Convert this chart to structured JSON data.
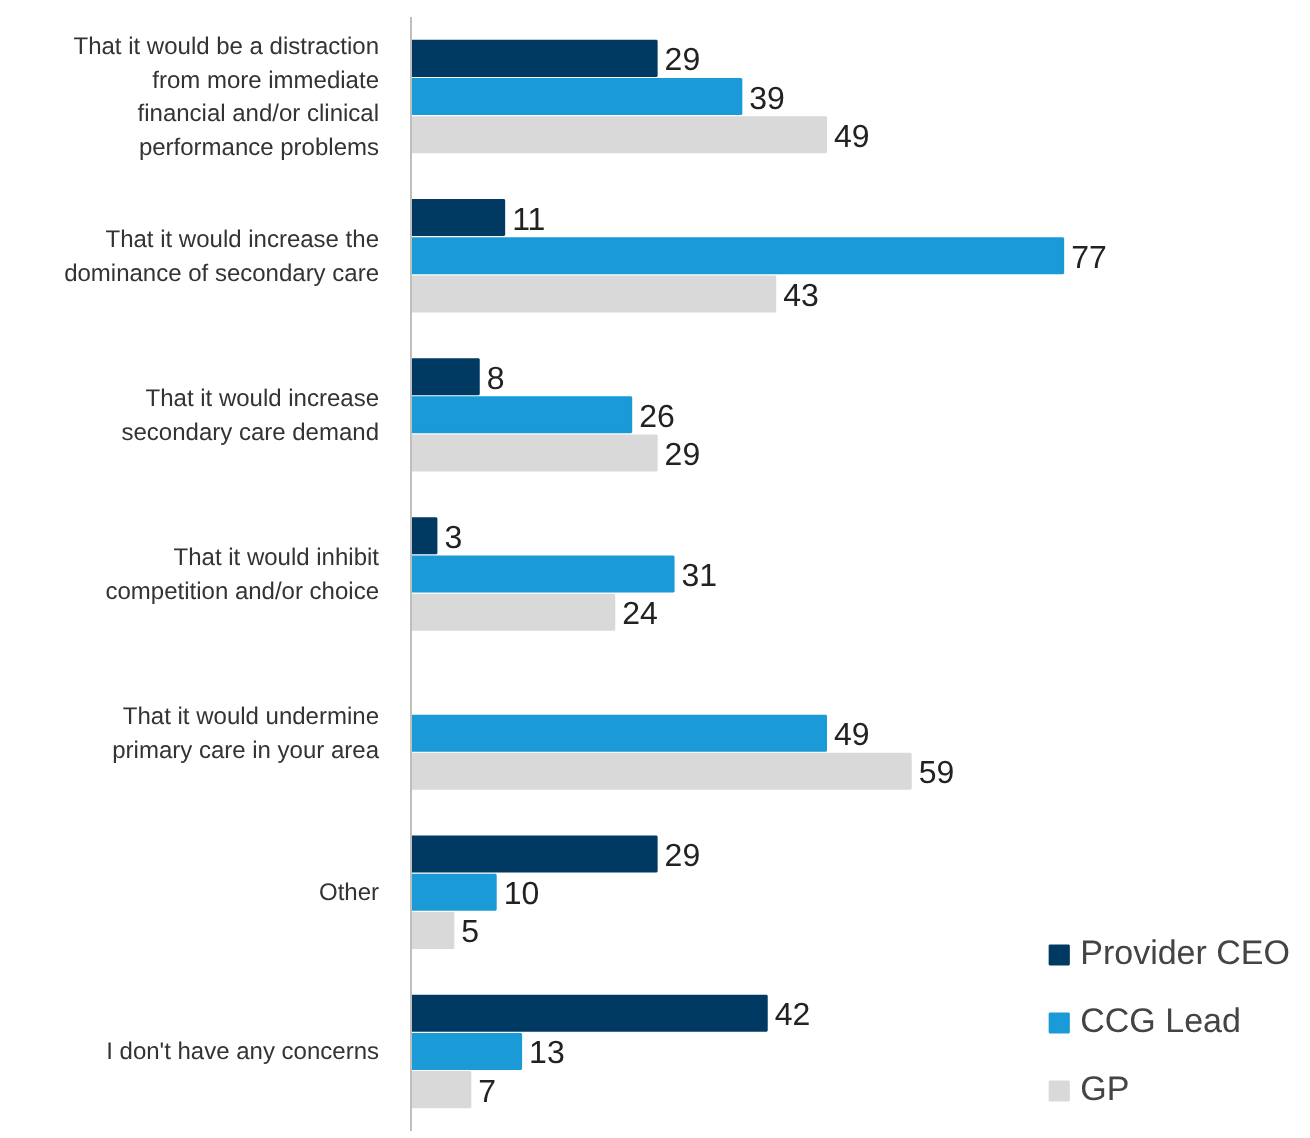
{
  "chart_data": {
    "type": "bar",
    "orientation": "horizontal",
    "categories": [
      "That it would be a distraction\nfrom more immediate\nfinancial and/or clinical\nperformance problems",
      "That it would increase the\ndominance of secondary care",
      "That it would increase\nsecondary care demand",
      "That it would inhibit\ncompetition and/or choice",
      "That it would undermine\nprimary care in your area",
      "Other",
      "I don't have any concerns"
    ],
    "series": [
      {
        "name": "Provider CEO",
        "color": "#003a63",
        "values": [
          29,
          11,
          8,
          3,
          null,
          29,
          42
        ]
      },
      {
        "name": "CCG Lead",
        "color": "#1a9ad6",
        "values": [
          39,
          77,
          26,
          31,
          49,
          10,
          13
        ]
      },
      {
        "name": "GP",
        "color": "#d9d9d9",
        "values": [
          49,
          43,
          29,
          24,
          59,
          5,
          7
        ]
      }
    ],
    "data_labels": true,
    "legend": "bottom right",
    "grid": false
  }
}
